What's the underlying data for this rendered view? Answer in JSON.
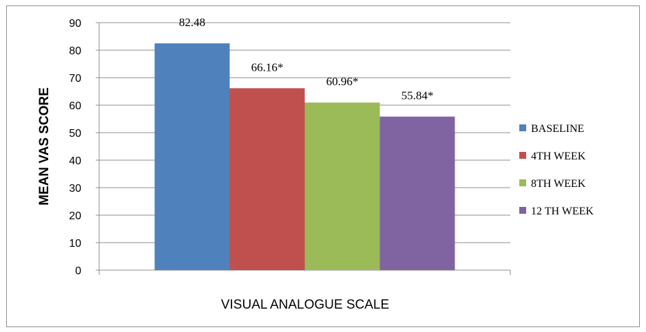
{
  "chart_data": {
    "type": "bar",
    "title": "",
    "xlabel": "VISUAL ANALOGUE SCALE",
    "ylabel": "MEAN VAS SCORE",
    "ylim": [
      0,
      90
    ],
    "yticks": [
      0,
      10,
      20,
      30,
      40,
      50,
      60,
      70,
      80,
      90
    ],
    "grid": true,
    "legend_position": "right",
    "series": [
      {
        "name": "BASELINE",
        "value": 82.48,
        "label": "82.48",
        "color": "#4F81BD"
      },
      {
        "name": "4TH WEEK",
        "value": 66.16,
        "label": "66.16*",
        "color": "#C0504D"
      },
      {
        "name": "8TH WEEK",
        "value": 60.96,
        "label": "60.96*",
        "color": "#9BBB59"
      },
      {
        "name": "12 TH WEEK",
        "value": 55.84,
        "label": "55.84*",
        "color": "#8064A2"
      }
    ]
  }
}
